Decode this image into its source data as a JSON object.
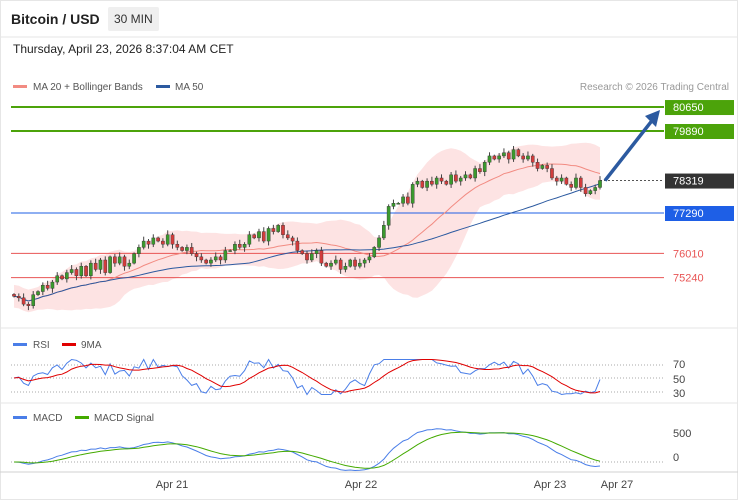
{
  "header": {
    "title": "Bitcoin / USD",
    "timeframe": "30 MIN",
    "datetime": "Thursday, April 23, 2026 8:37:04 AM CET"
  },
  "legend": {
    "ma20_label": "MA 20 + Bollinger Bands",
    "ma50_label": "MA 50",
    "ma20_color": "#f28b82",
    "ma50_color": "#2c5aa0",
    "rsi_label": "RSI",
    "rsi_ma_label": "9MA",
    "rsi_color": "#4a7ee8",
    "rsi_ma_color": "#e00000",
    "macd_label": "MACD",
    "macd_signal_label": "MACD Signal",
    "macd_color": "#4a7ee8",
    "macd_signal_color": "#44aa00"
  },
  "credit": "Research © 2026 Trading Central",
  "chart_data": {
    "type": "candlestick",
    "price_range": [
      73800,
      81600
    ],
    "last_price": 78319,
    "levels": [
      {
        "value": 80650,
        "label": "80650",
        "kind": "resistance",
        "color": "#4ca30a"
      },
      {
        "value": 79890,
        "label": "79890",
        "kind": "resistance",
        "color": "#4ca30a"
      },
      {
        "value": 78319,
        "label": "78319",
        "kind": "last",
        "color": "#333333"
      },
      {
        "value": 77290,
        "label": "77290",
        "kind": "pivot",
        "color": "#1e5fe6"
      },
      {
        "value": 76010,
        "label": "76010",
        "kind": "support",
        "color": "#e85555"
      },
      {
        "value": 75240,
        "label": "75240",
        "kind": "support",
        "color": "#e85555"
      }
    ],
    "closes": [
      74650,
      74600,
      74400,
      74350,
      74700,
      74800,
      75000,
      74900,
      75100,
      75300,
      75200,
      75400,
      75500,
      75300,
      75600,
      75300,
      75700,
      75500,
      75800,
      75400,
      75900,
      75700,
      75900,
      75600,
      75700,
      76000,
      76200,
      76400,
      76300,
      76500,
      76400,
      76300,
      76600,
      76300,
      76200,
      76100,
      76200,
      76000,
      75900,
      75800,
      75700,
      75800,
      75900,
      75800,
      76100,
      76100,
      76300,
      76200,
      76300,
      76600,
      76500,
      76700,
      76400,
      76800,
      76700,
      76900,
      76600,
      76500,
      76400,
      76100,
      76000,
      75800,
      76000,
      76100,
      75700,
      75600,
      75700,
      75800,
      75500,
      75600,
      75800,
      75600,
      75700,
      75800,
      75900,
      76200,
      76500,
      76900,
      77500,
      77600,
      77600,
      77800,
      77600,
      78200,
      78300,
      78100,
      78300,
      78200,
      78400,
      78300,
      78200,
      78500,
      78300,
      78400,
      78500,
      78400,
      78700,
      78600,
      78900,
      79100,
      79000,
      79100,
      79200,
      79000,
      79300,
      79100,
      79000,
      79100,
      78900,
      78700,
      78800,
      78700,
      78400,
      78300,
      78400,
      78200,
      78100,
      78400,
      78100,
      77900,
      78000,
      78100,
      78319
    ],
    "rsi_axis": [
      30,
      50,
      70
    ],
    "macd_axis": [
      0,
      500
    ],
    "x_labels": [
      "Apr 21",
      "Apr 22",
      "Apr 23",
      "Apr 27"
    ]
  }
}
